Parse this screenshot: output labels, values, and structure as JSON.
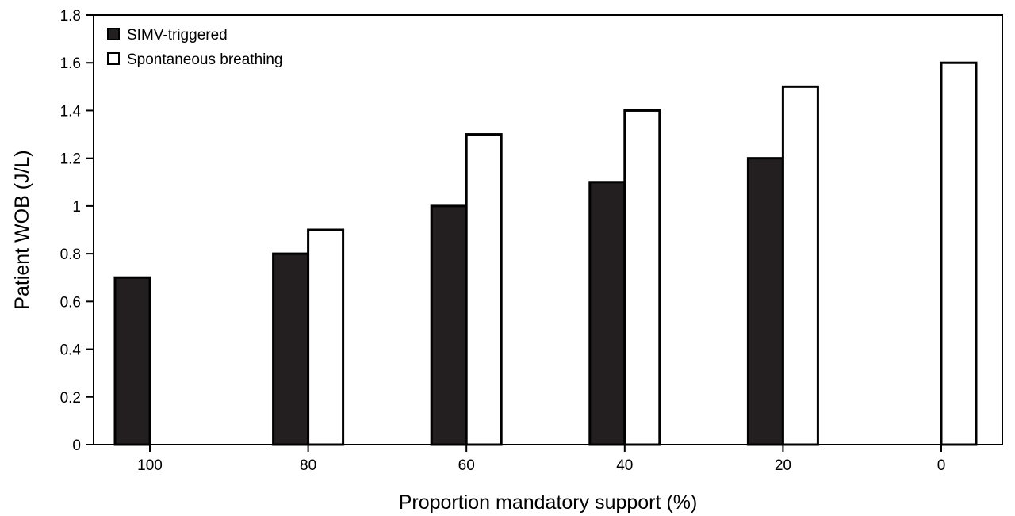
{
  "chart_data": {
    "type": "bar",
    "categories": [
      "100",
      "80",
      "60",
      "40",
      "20",
      "0"
    ],
    "series": [
      {
        "name": "SIMV-triggered",
        "values": [
          0.7,
          0.8,
          1.0,
          1.1,
          1.2,
          null
        ],
        "color": "#231f20"
      },
      {
        "name": "Spontaneous breathing",
        "values": [
          null,
          0.9,
          1.3,
          1.4,
          1.5,
          1.6
        ],
        "color": "#ffffff"
      }
    ],
    "yticks": [
      "0",
      "0.2",
      "0.4",
      "0.6",
      "0.8",
      "1",
      "1.2",
      "1.4",
      "1.6",
      "1.8"
    ],
    "xlabel": "Proportion mandatory support (%)",
    "ylabel": "Patient WOB (J/L)",
    "ylim": [
      0,
      1.8
    ],
    "grid": false,
    "legend_position": "top-left",
    "title": ""
  }
}
